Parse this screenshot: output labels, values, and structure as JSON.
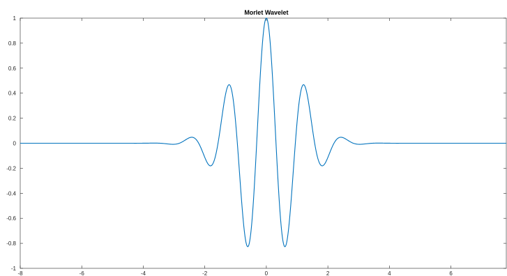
{
  "chart_data": {
    "type": "line",
    "title": "Morlet Wavelet",
    "xlabel": "",
    "ylabel": "",
    "xlim": [
      -8,
      7.8
    ],
    "ylim": [
      -1,
      1
    ],
    "xticks": [
      -8,
      -6,
      -4,
      -2,
      0,
      2,
      4,
      6
    ],
    "xtick_labels": [
      "-8",
      "-6",
      "-4",
      "-2",
      "0",
      "2",
      "4",
      "6"
    ],
    "yticks": [
      -1,
      -0.8,
      -0.6,
      -0.4,
      -0.2,
      0,
      0.2,
      0.4,
      0.6,
      0.8,
      1
    ],
    "ytick_labels": [
      "-1",
      "-0.8",
      "-0.6",
      "-0.4",
      "-0.2",
      "0",
      "0.2",
      "0.4",
      "0.6",
      "0.8",
      "1"
    ],
    "grid": false,
    "box": true,
    "series": [
      {
        "color": "#0072BD",
        "function": "exp(-x^2/2)*cos(5x)",
        "x_range": [
          -8,
          7.8
        ],
        "samples": 1200
      }
    ]
  }
}
